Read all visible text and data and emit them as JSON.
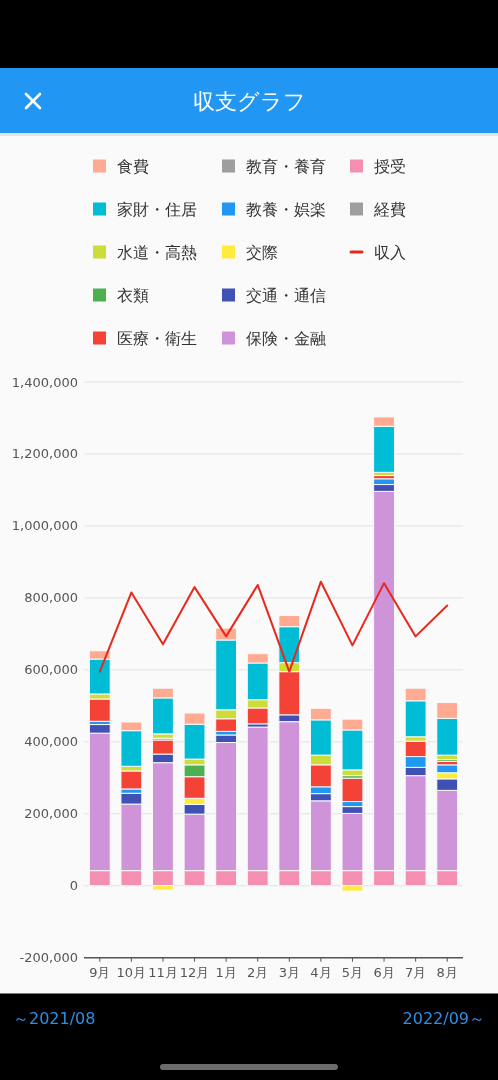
{
  "chart_data": {
    "type": "bar",
    "title": "収支グラフ",
    "stacked": true,
    "categories": [
      "9月",
      "10月",
      "11月",
      "12月",
      "1月",
      "2月",
      "3月",
      "4月",
      "5月",
      "6月",
      "7月",
      "8月"
    ],
    "series": [
      {
        "name": "経費",
        "color": "#9e9e9e",
        "values": [
          null,
          null,
          null,
          null,
          null,
          null,
          null,
          null,
          null,
          null,
          null,
          null
        ]
      },
      {
        "name": "授受",
        "color": "#f48fb1",
        "values": [
          42000,
          42000,
          42000,
          42000,
          42000,
          42000,
          42000,
          42000,
          42000,
          42000,
          42000,
          42000
        ]
      },
      {
        "name": "保険・金融",
        "color": "#ce93d8",
        "values": [
          382000,
          185000,
          300000,
          157000,
          356000,
          399000,
          414000,
          194000,
          159000,
          1054000,
          264000,
          223000
        ]
      },
      {
        "name": "交通・通信",
        "color": "#3f51b5",
        "values": [
          24000,
          30000,
          24000,
          27000,
          21000,
          9000,
          19000,
          20000,
          19000,
          19000,
          23000,
          32000
        ]
      },
      {
        "name": "交際",
        "color": "#ffeb3b",
        "values": [
          null,
          null,
          -12000,
          17000,
          null,
          null,
          null,
          null,
          -15000,
          null,
          null,
          17000
        ]
      },
      {
        "name": "教養・娯楽",
        "color": "#2196f3",
        "values": [
          9000,
          12000,
          null,
          null,
          10000,
          null,
          null,
          19000,
          14000,
          16000,
          30000,
          22000
        ]
      },
      {
        "name": "教育・養育",
        "color": "#9e9e9e",
        "values": [
          null,
          null,
          null,
          null,
          null,
          null,
          null,
          null,
          null,
          null,
          null,
          null
        ]
      },
      {
        "name": "医療・衛生",
        "color": "#f44336",
        "values": [
          62000,
          50000,
          39000,
          60000,
          35000,
          44000,
          120000,
          61000,
          65000,
          9000,
          43000,
          10000
        ]
      },
      {
        "name": "衣類",
        "color": "#4caf50",
        "values": [
          null,
          null,
          5000,
          33000,
          null,
          null,
          null,
          null,
          7000,
          null,
          null,
          5000
        ]
      },
      {
        "name": "水道・高熱",
        "color": "#cddc39",
        "values": [
          14000,
          13000,
          12000,
          16000,
          25000,
          23000,
          25000,
          27000,
          16000,
          9000,
          12000,
          12000
        ]
      },
      {
        "name": "家財・住居",
        "color": "#00bcd4",
        "values": [
          97000,
          99000,
          100000,
          97000,
          194000,
          102000,
          100000,
          98000,
          111000,
          128000,
          100000,
          102000
        ]
      },
      {
        "name": "食費",
        "color": "#ffab91",
        "values": [
          23000,
          24000,
          27000,
          31000,
          33000,
          26000,
          31000,
          32000,
          30000,
          26000,
          35000,
          44000
        ]
      },
      {
        "name": "収入",
        "type": "line",
        "color": "#e8281c",
        "values": [
          595000,
          815000,
          671000,
          830000,
          693000,
          836000,
          595000,
          845000,
          668000,
          841000,
          693000,
          779000
        ]
      }
    ],
    "ylim": [
      -200000,
      1400000
    ],
    "yticks": [
      {
        "value": -200000,
        "label": "-200,000"
      },
      0,
      {
        "value": 200000,
        "label": "200,000"
      },
      {
        "value": 400000,
        "label": "400,000"
      },
      {
        "value": 600000,
        "label": "600,000"
      },
      {
        "value": 800000,
        "label": "800,000"
      },
      {
        "value": 1000000,
        "label": "1,000,000"
      },
      {
        "value": 1200000,
        "label": "1,200,000"
      },
      {
        "value": 1400000,
        "label": "1,400,000"
      }
    ],
    "grid": "y",
    "legend": "top",
    "annotations": [
      "～2021/08",
      "2022/09～"
    ]
  }
}
